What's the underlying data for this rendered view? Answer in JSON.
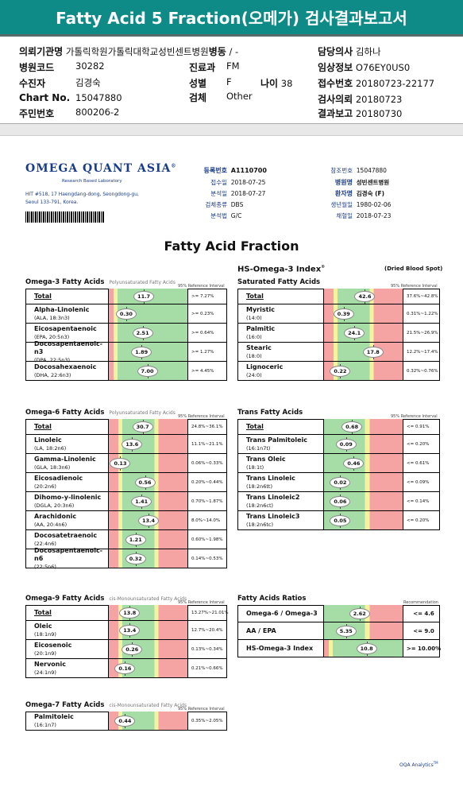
{
  "header": {
    "title": "Fatty Acid 5 Fraction(오메가) 검사결과보고서"
  },
  "patient": {
    "institution_label": "의뢰기관명",
    "institution": "가톨릭학원가톨릭대학교성빈센트병원",
    "ward_label": "병동",
    "ward": "/ -",
    "doctor_label": "담당의사",
    "doctor": "김하나",
    "hospital_code_label": "병원코드",
    "hospital_code": "30282",
    "dept_label": "진료과",
    "dept": "FM",
    "clinical_label": "임상정보",
    "clinical": "O76EY0US0",
    "subject_label": "수진자",
    "subject": "김경숙",
    "sex_label": "성별",
    "sex": "F",
    "age_label": "나이",
    "age": "38",
    "receipt_label": "접수번호",
    "receipt": "20180723-22177",
    "chart_label": "Chart No.",
    "chart": "15047880",
    "specimen_label": "검체",
    "specimen": "Other",
    "request_label": "검사의뢰",
    "request": "20180723",
    "id_label": "주민번호",
    "id": "800206-2",
    "report_label": "결과보고",
    "report": "20180730"
  },
  "sheet": {
    "logo": "OMEGA QUANT ASIA",
    "logo_mark": "®",
    "logo_sub": "Research Based Laboratory",
    "address": "HIT #518, 17 Haengdang-dong, Seongdong-gu, Seoul 133-791, Korea.",
    "reg_label": "등록번호",
    "reg": "A1110700",
    "recv_date_label": "접수일",
    "recv_date": "2018-07-25",
    "analysis_date_label": "분석일",
    "analysis_date": "2018-07-27",
    "specimen_type_label": "검체종류",
    "specimen_type": "DBS",
    "method_label": "분석법",
    "method": "G/C",
    "ref_no_label": "참조번호",
    "ref_no": "15047880",
    "hospital_label": "병원명",
    "hospital": "성빈센트병원",
    "patient_label": "환자명",
    "patient": "김경숙 (F)",
    "dob_label": "생년월일",
    "dob": "1980-02-06",
    "collect_label": "채혈일",
    "collect": "2018-07-23",
    "title": "Fatty Acid Fraction",
    "subtitle": "HS-Omega-3 Index",
    "subtitle_mark": "®",
    "dbs": "(Dried Blood Spot)",
    "ref_interval": "95% Reference Interval",
    "recommendation": "Recommendation",
    "footer": "OQA Analytics",
    "footer_mark": "TM"
  },
  "colors": {
    "red": "#f5a3a3",
    "yellow": "#f3f3a0",
    "green": "#a6dda6",
    "teal": "#0e8a87"
  },
  "sections": {
    "o3": {
      "title": "Omega-3 Fatty Acids",
      "sub": "Polyunsaturated Fatty Acids",
      "rows": [
        {
          "name": "Total",
          "sub": "",
          "value": "11.7",
          "pos": 0.42,
          "range": ">= 7.27%",
          "pattern": "rg",
          "total": true
        },
        {
          "name": "Alpha-Linolenic",
          "sub": "(ALA, 18:3n3)",
          "value": "0.30",
          "pos": 0.12,
          "range": ">= 0.23%",
          "pattern": "rg"
        },
        {
          "name": "Eicosapentaenoic",
          "sub": "(EPA, 20:5n3)",
          "value": "2.51",
          "pos": 0.4,
          "range": ">= 0.64%",
          "pattern": "rg"
        },
        {
          "name": "Docosapentaenoic-n3",
          "sub": "(DPA, 22:5n3)",
          "value": "1.89",
          "pos": 0.38,
          "range": ">= 1.27%",
          "pattern": "rg"
        },
        {
          "name": "Docosahexaenoic",
          "sub": "(DHA, 22:6n3)",
          "value": "7.00",
          "pos": 0.48,
          "range": ">= 4.45%",
          "pattern": "rg"
        }
      ]
    },
    "sat": {
      "title": "Saturated Fatty Acids",
      "rows": [
        {
          "name": "Total",
          "sub": "",
          "value": "42.6",
          "pos": 0.52,
          "range": "37.6%~42.8%",
          "pattern": "rgr",
          "total": true
        },
        {
          "name": "Myristic",
          "sub": "(14:0)",
          "value": "0.39",
          "pos": 0.16,
          "range": "0.31%~1.22%",
          "pattern": "rgr"
        },
        {
          "name": "Palmitic",
          "sub": "(16:0)",
          "value": "24.1",
          "pos": 0.34,
          "range": "21.5%~26.9%",
          "pattern": "rgr"
        },
        {
          "name": "Stearic",
          "sub": "(18:0)",
          "value": "17.8",
          "pos": 0.66,
          "range": "12.2%~17.4%",
          "pattern": "rgr"
        },
        {
          "name": "Lignoceric",
          "sub": "(24:0)",
          "value": "0.22",
          "pos": 0.1,
          "range": "0.32%~0.76%",
          "pattern": "rgr"
        }
      ]
    },
    "o6": {
      "title": "Omega-6 Fatty Acids",
      "sub": "Polyunsaturated Fatty Acids",
      "rows": [
        {
          "name": "Total",
          "sub": "",
          "value": "30.7",
          "pos": 0.4,
          "range": "24.8%~36.1%",
          "pattern": "rgr",
          "total": true
        },
        {
          "name": "Linoleic",
          "sub": "(LA, 18:2n6)",
          "value": "13.6",
          "pos": 0.22,
          "range": "11.1%~21.1%",
          "pattern": "rgr"
        },
        {
          "name": "Gamma-Linolenic",
          "sub": "(GLA, 18:3n6)",
          "value": "0.13",
          "pos": 0.02,
          "range": "0.06%~0.33%",
          "pattern": "rgr"
        },
        {
          "name": "Eicosadienoic",
          "sub": "(20:2n6)",
          "value": "0.56",
          "pos": 0.44,
          "range": "0.20%~0.44%",
          "pattern": "rgr"
        },
        {
          "name": "Dihomo-y-linolenic",
          "sub": "(DGLA, 20:3n6)",
          "value": "1.41",
          "pos": 0.38,
          "range": "0.70%~1.87%",
          "pattern": "rgr"
        },
        {
          "name": "Arachidonic",
          "sub": "(AA, 20:4n6)",
          "value": "13.4",
          "pos": 0.5,
          "range": "8.0%~14.0%",
          "pattern": "rgr"
        },
        {
          "name": "Docosatetraenoic",
          "sub": "(22:4n6)",
          "value": "1.21",
          "pos": 0.28,
          "range": "0.60%~1.98%",
          "pattern": "rgr"
        },
        {
          "name": "Docosapentaenoic-n6",
          "sub": "(22:5n6)",
          "value": "0.32",
          "pos": 0.28,
          "range": "0.14%~0.53%",
          "pattern": "rgr"
        }
      ]
    },
    "trans": {
      "title": "Trans Fatty Acids",
      "rows": [
        {
          "name": "Total",
          "sub": "",
          "value": "0.68",
          "pos": 0.3,
          "range": "<= 0.91%",
          "pattern": "gr",
          "total": true
        },
        {
          "name": "Trans Palmitoleic",
          "sub": "(16:1n7t)",
          "value": "0.09",
          "pos": 0.2,
          "range": "<= 0.20%",
          "pattern": "gr"
        },
        {
          "name": "Trans Oleic",
          "sub": "(18:1t)",
          "value": "0.46",
          "pos": 0.33,
          "range": "<= 0.61%",
          "pattern": "gr"
        },
        {
          "name": "Trans Linoleic",
          "sub": "(18:2n6tt)",
          "value": "0.02",
          "pos": 0.1,
          "range": "<= 0.09%",
          "pattern": "gr"
        },
        {
          "name": "Trans Linoleic2",
          "sub": "(18:2n6ct)",
          "value": "0.06",
          "pos": 0.1,
          "range": "<= 0.14%",
          "pattern": "gr"
        },
        {
          "name": "Trans Linoleic3",
          "sub": "(18:2n6tc)",
          "value": "0.05",
          "pos": 0.1,
          "range": "<= 0.20%",
          "pattern": "gr"
        }
      ]
    },
    "o9": {
      "title": "Omega-9 Fatty Acids",
      "sub": "cis-Monounsaturated Fatty Acids",
      "rows": [
        {
          "name": "Total",
          "sub": "",
          "value": "13.8",
          "pos": 0.18,
          "range": "13.27%~21.01%",
          "pattern": "rgr",
          "total": true
        },
        {
          "name": "Oleic",
          "sub": "(18:1n9)",
          "value": "13.4",
          "pos": 0.18,
          "range": "12.7%~20.4%",
          "pattern": "rgr"
        },
        {
          "name": "Eicosenoic",
          "sub": "(20:1n9)",
          "value": "0.26",
          "pos": 0.22,
          "range": "0.13%~0.34%",
          "pattern": "rgr"
        },
        {
          "name": "Nervonic",
          "sub": "(24:1n9)",
          "value": "0.16",
          "pos": 0.1,
          "range": "0.21%~0.66%",
          "pattern": "rgr"
        }
      ]
    },
    "ratio": {
      "title": "Fatty Acids Ratios",
      "rows": [
        {
          "name": "Omega-6 / Omega-3",
          "sub": "",
          "value": "2.62",
          "pos": 0.43,
          "range": "<= 4.6",
          "pattern": "gr"
        },
        {
          "name": "AA / EPA",
          "sub": "",
          "value": "5.35",
          "pos": 0.2,
          "range": "<= 9.0",
          "pattern": "gr"
        },
        {
          "name": "HS-Omega-3 Index",
          "sub": "",
          "value": "10.8",
          "pos": 0.55,
          "range": ">= 10.00%",
          "pattern": "rg"
        }
      ]
    },
    "o7": {
      "title": "Omega-7 Fatty Acids",
      "sub": "cis-Monounsaturated Fatty Acids",
      "rows": [
        {
          "name": "Palmitoleic",
          "sub": "(16:1n7)",
          "value": "0.44",
          "pos": 0.1,
          "range": "0.35%~2.05%",
          "pattern": "rgr"
        }
      ]
    }
  }
}
